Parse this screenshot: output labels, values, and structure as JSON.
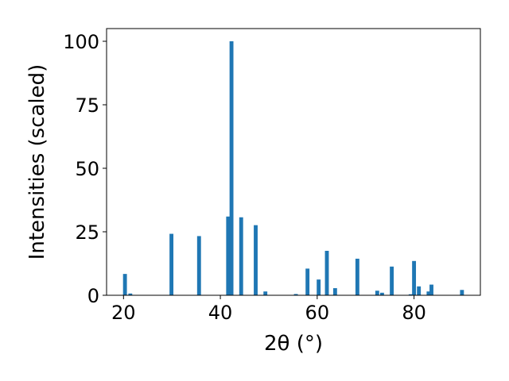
{
  "chart_data": {
    "type": "bar",
    "title": "",
    "xlabel": "2θ (°)",
    "ylabel": "Intensities (scaled)",
    "xlim": [
      16.5,
      93.7
    ],
    "ylim": [
      0,
      105
    ],
    "xticks": [
      20,
      40,
      60,
      80
    ],
    "yticks": [
      0,
      25,
      50,
      75,
      100
    ],
    "grid": false,
    "bar_color": "#1f77b4",
    "bar_width": 0.8,
    "x": [
      20.3,
      21.4,
      29.9,
      35.6,
      41.6,
      42.3,
      44.3,
      47.3,
      49.3,
      55.6,
      58.0,
      60.3,
      62.0,
      63.7,
      68.3,
      72.4,
      73.4,
      75.4,
      79.3,
      80.0,
      81.0,
      83.0,
      83.6,
      89.9
    ],
    "values": [
      8.4,
      0.7,
      24.2,
      23.3,
      31.0,
      100.0,
      30.7,
      27.6,
      1.5,
      0.5,
      10.5,
      6.2,
      17.5,
      2.8,
      14.4,
      1.8,
      1.0,
      11.3,
      0.4,
      13.5,
      3.5,
      1.5,
      4.2,
      2.1
    ]
  }
}
